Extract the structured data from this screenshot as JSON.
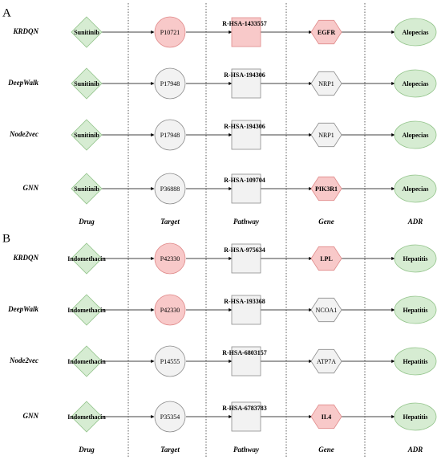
{
  "columns": [
    "Drug",
    "Target",
    "Pathway",
    "Gene",
    "ADR"
  ],
  "colors": {
    "drug_fill": "#d6ecd2",
    "drug_stroke": "#93c48b",
    "highlight_fill": "#f8c9c9",
    "highlight_stroke": "#e08a8a",
    "neutral_fill": "#f2f2f2",
    "neutral_stroke": "#8c8c8c",
    "adr_fill": "#d6ecd2",
    "adr_stroke": "#93c48b"
  },
  "panels": [
    {
      "letter": "A",
      "rows": [
        {
          "method": "KRDQN",
          "drug": "Sunitinib",
          "target": "P10721",
          "target_hl": true,
          "pathway": "R-HSA-1433557",
          "pathway_hl": true,
          "gene": "EGFR",
          "gene_hl": true,
          "adr": "Alopecias"
        },
        {
          "method": "DeepWalk",
          "drug": "Sunitinib",
          "target": "P17948",
          "target_hl": false,
          "pathway": "R-HSA-194306",
          "pathway_hl": false,
          "gene": "NRP1",
          "gene_hl": false,
          "adr": "Alopecias"
        },
        {
          "method": "Node2vec",
          "drug": "Sunitinib",
          "target": "P17948",
          "target_hl": false,
          "pathway": "R-HSA-194306",
          "pathway_hl": false,
          "gene": "NRP1",
          "gene_hl": false,
          "adr": "Alopecias"
        },
        {
          "method": "GNN",
          "drug": "Sunitinib",
          "target": "P36888",
          "target_hl": false,
          "pathway": "R-HSA-109704",
          "pathway_hl": false,
          "gene": "PIK3R1",
          "gene_hl": true,
          "adr": "Alopecias"
        }
      ]
    },
    {
      "letter": "B",
      "rows": [
        {
          "method": "KRDQN",
          "drug": "Indomethacin",
          "target": "P42330",
          "target_hl": true,
          "pathway": "R-HSA-975634",
          "pathway_hl": false,
          "gene": "LPL",
          "gene_hl": true,
          "adr": "Hepatitis"
        },
        {
          "method": "DeepWalk",
          "drug": "Indomethacin",
          "target": "P42330",
          "target_hl": true,
          "pathway": "R-HSA-193368",
          "pathway_hl": false,
          "gene": "NCOA1",
          "gene_hl": false,
          "adr": "Hepatitis"
        },
        {
          "method": "Node2vec",
          "drug": "Indomethacin",
          "target": "P14555",
          "target_hl": false,
          "pathway": "R-HSA-6803157",
          "pathway_hl": false,
          "gene": "ATP7A",
          "gene_hl": false,
          "adr": "Hepatitis"
        },
        {
          "method": "GNN",
          "drug": "Indomethacin",
          "target": "P35354",
          "target_hl": false,
          "pathway": "R-HSA-6783783",
          "pathway_hl": false,
          "gene": "IL4",
          "gene_hl": true,
          "adr": "Hepatitis"
        }
      ]
    }
  ]
}
